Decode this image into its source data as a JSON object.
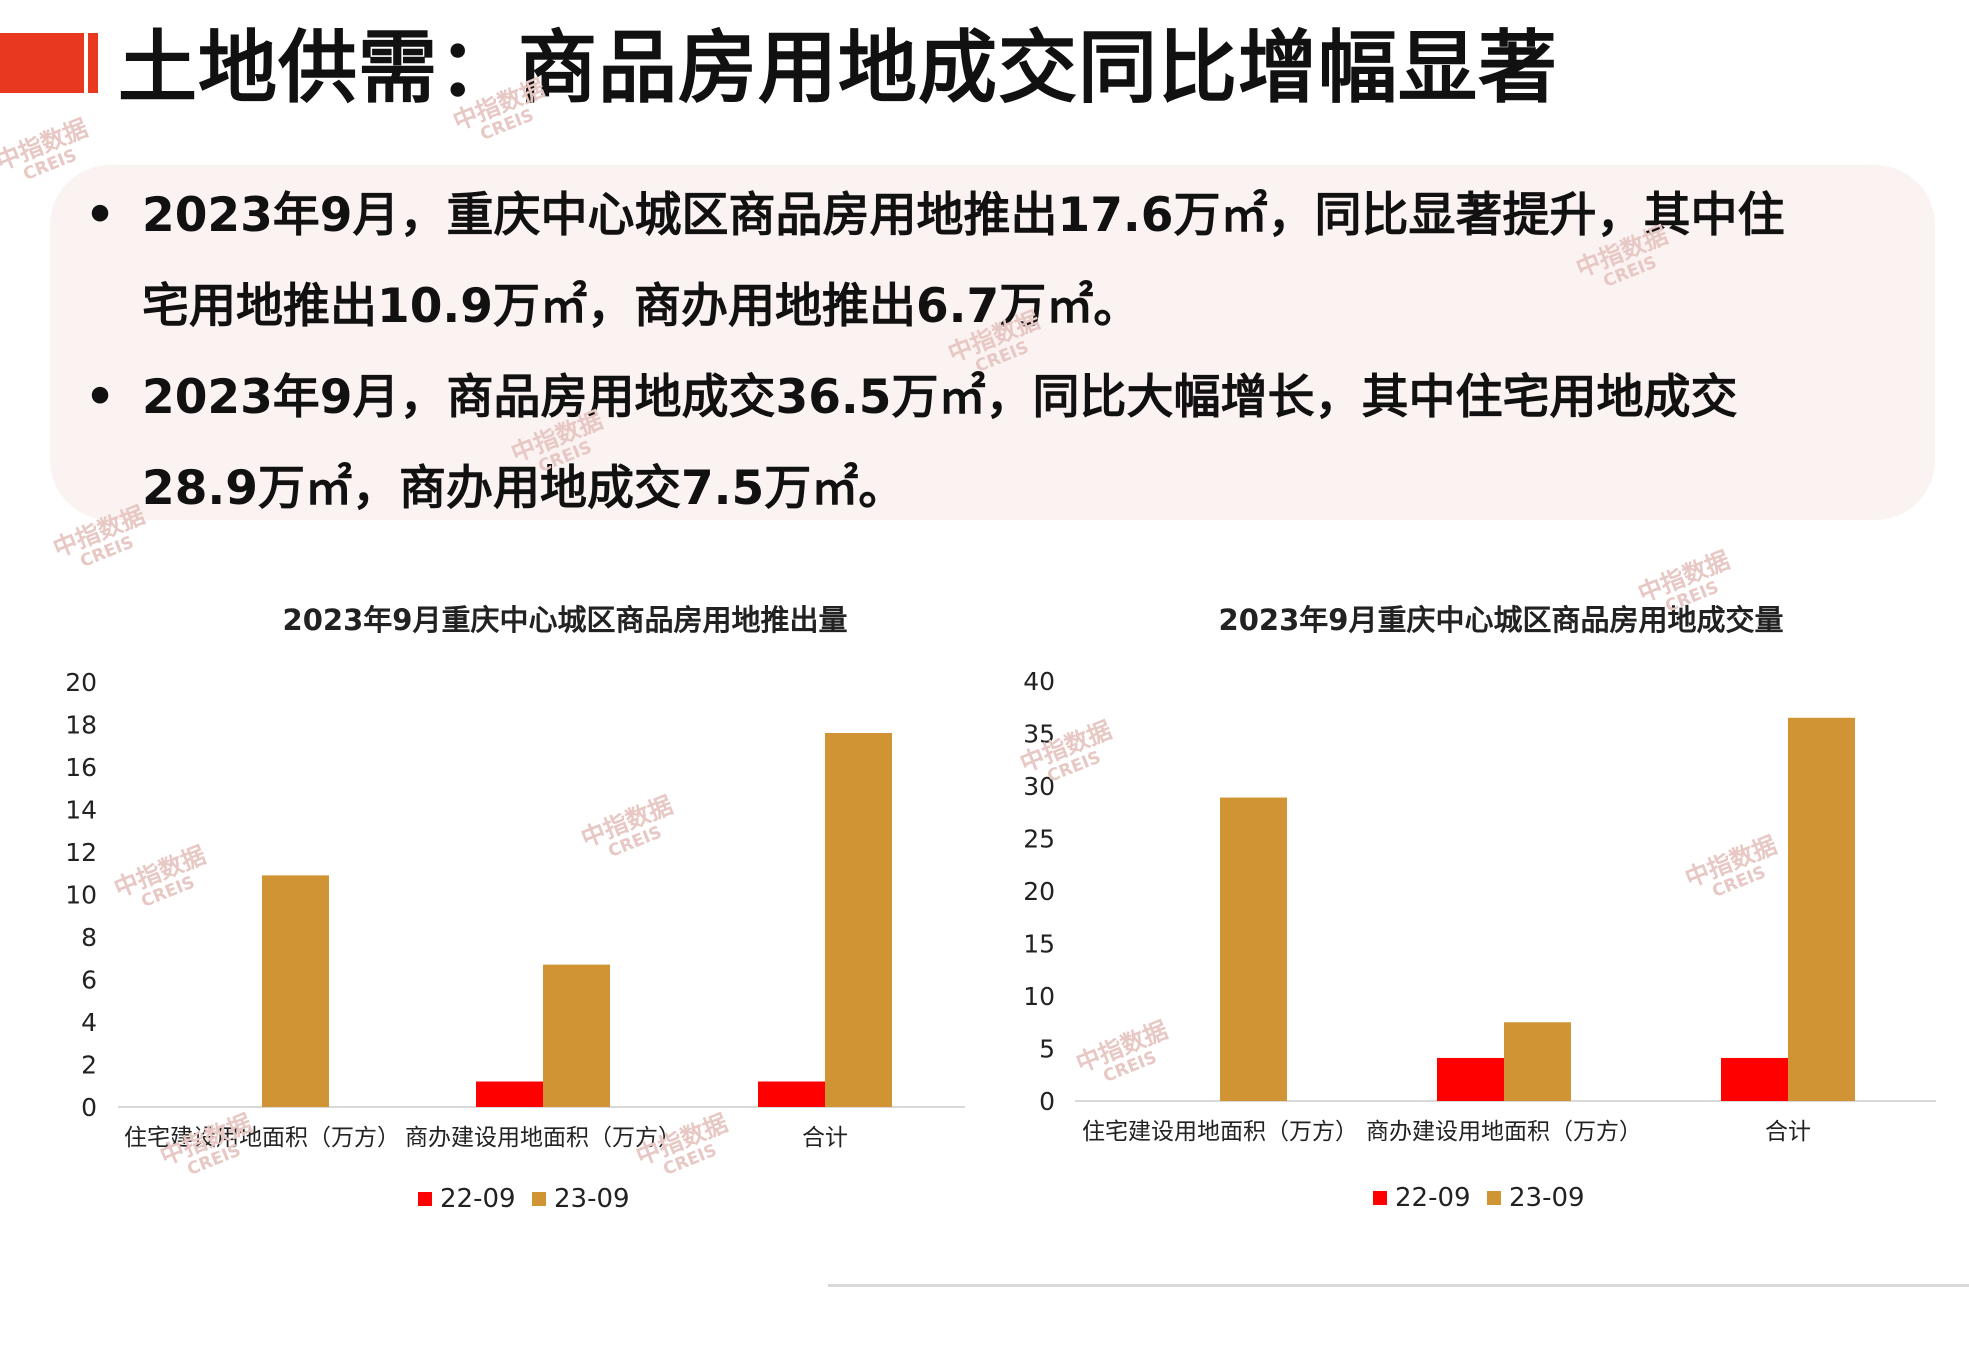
{
  "header": {
    "title": "土地供需：商品房用地成交同比增幅显著"
  },
  "summary": {
    "bullet_symbol": "•",
    "bullets": [
      {
        "line1": "2023年9月，重庆中心城区商品房用地推出17.6万㎡，同比显著提升，其中住",
        "line2": "宅用地推出10.9万㎡，商办用地推出6.7万㎡。"
      },
      {
        "line1": "2023年9月，商品房用地成交36.5万㎡，同比大幅增长，其中住宅用地成交",
        "line2": "28.9万㎡，商办用地成交7.5万㎡。"
      }
    ]
  },
  "watermark": {
    "cn": "中指数据",
    "en": "CREIS"
  },
  "colors": {
    "accent": "#e8381f",
    "series_2209": "#ff0000",
    "series_2309": "#d09434"
  },
  "chart_data": [
    {
      "type": "bar",
      "title": "2023年9月重庆中心城区商品房用地推出量",
      "categories": [
        "住宅建设用地面积（万方）",
        "商办建设用地面积（万方）",
        "合计"
      ],
      "series": [
        {
          "name": "22-09",
          "values": [
            0,
            1.2,
            1.2
          ]
        },
        {
          "name": "23-09",
          "values": [
            10.9,
            6.7,
            17.6
          ]
        }
      ],
      "ylim": [
        0,
        20
      ],
      "yticks": [
        0,
        2,
        4,
        6,
        8,
        10,
        12,
        14,
        16,
        18,
        20
      ],
      "grid": false,
      "legend": "bottom"
    },
    {
      "type": "bar",
      "title": "2023年9月重庆中心城区商品房用地成交量",
      "categories": [
        "住宅建设用地面积（万方）",
        "商办建设用地面积（万方）",
        "合计"
      ],
      "series": [
        {
          "name": "22-09",
          "values": [
            0,
            4.1,
            4.1
          ]
        },
        {
          "name": "23-09",
          "values": [
            28.9,
            7.5,
            36.5
          ]
        }
      ],
      "ylim": [
        0,
        40
      ],
      "yticks": [
        0,
        5,
        10,
        15,
        20,
        25,
        30,
        35,
        40
      ],
      "grid": false,
      "legend": "bottom"
    }
  ]
}
